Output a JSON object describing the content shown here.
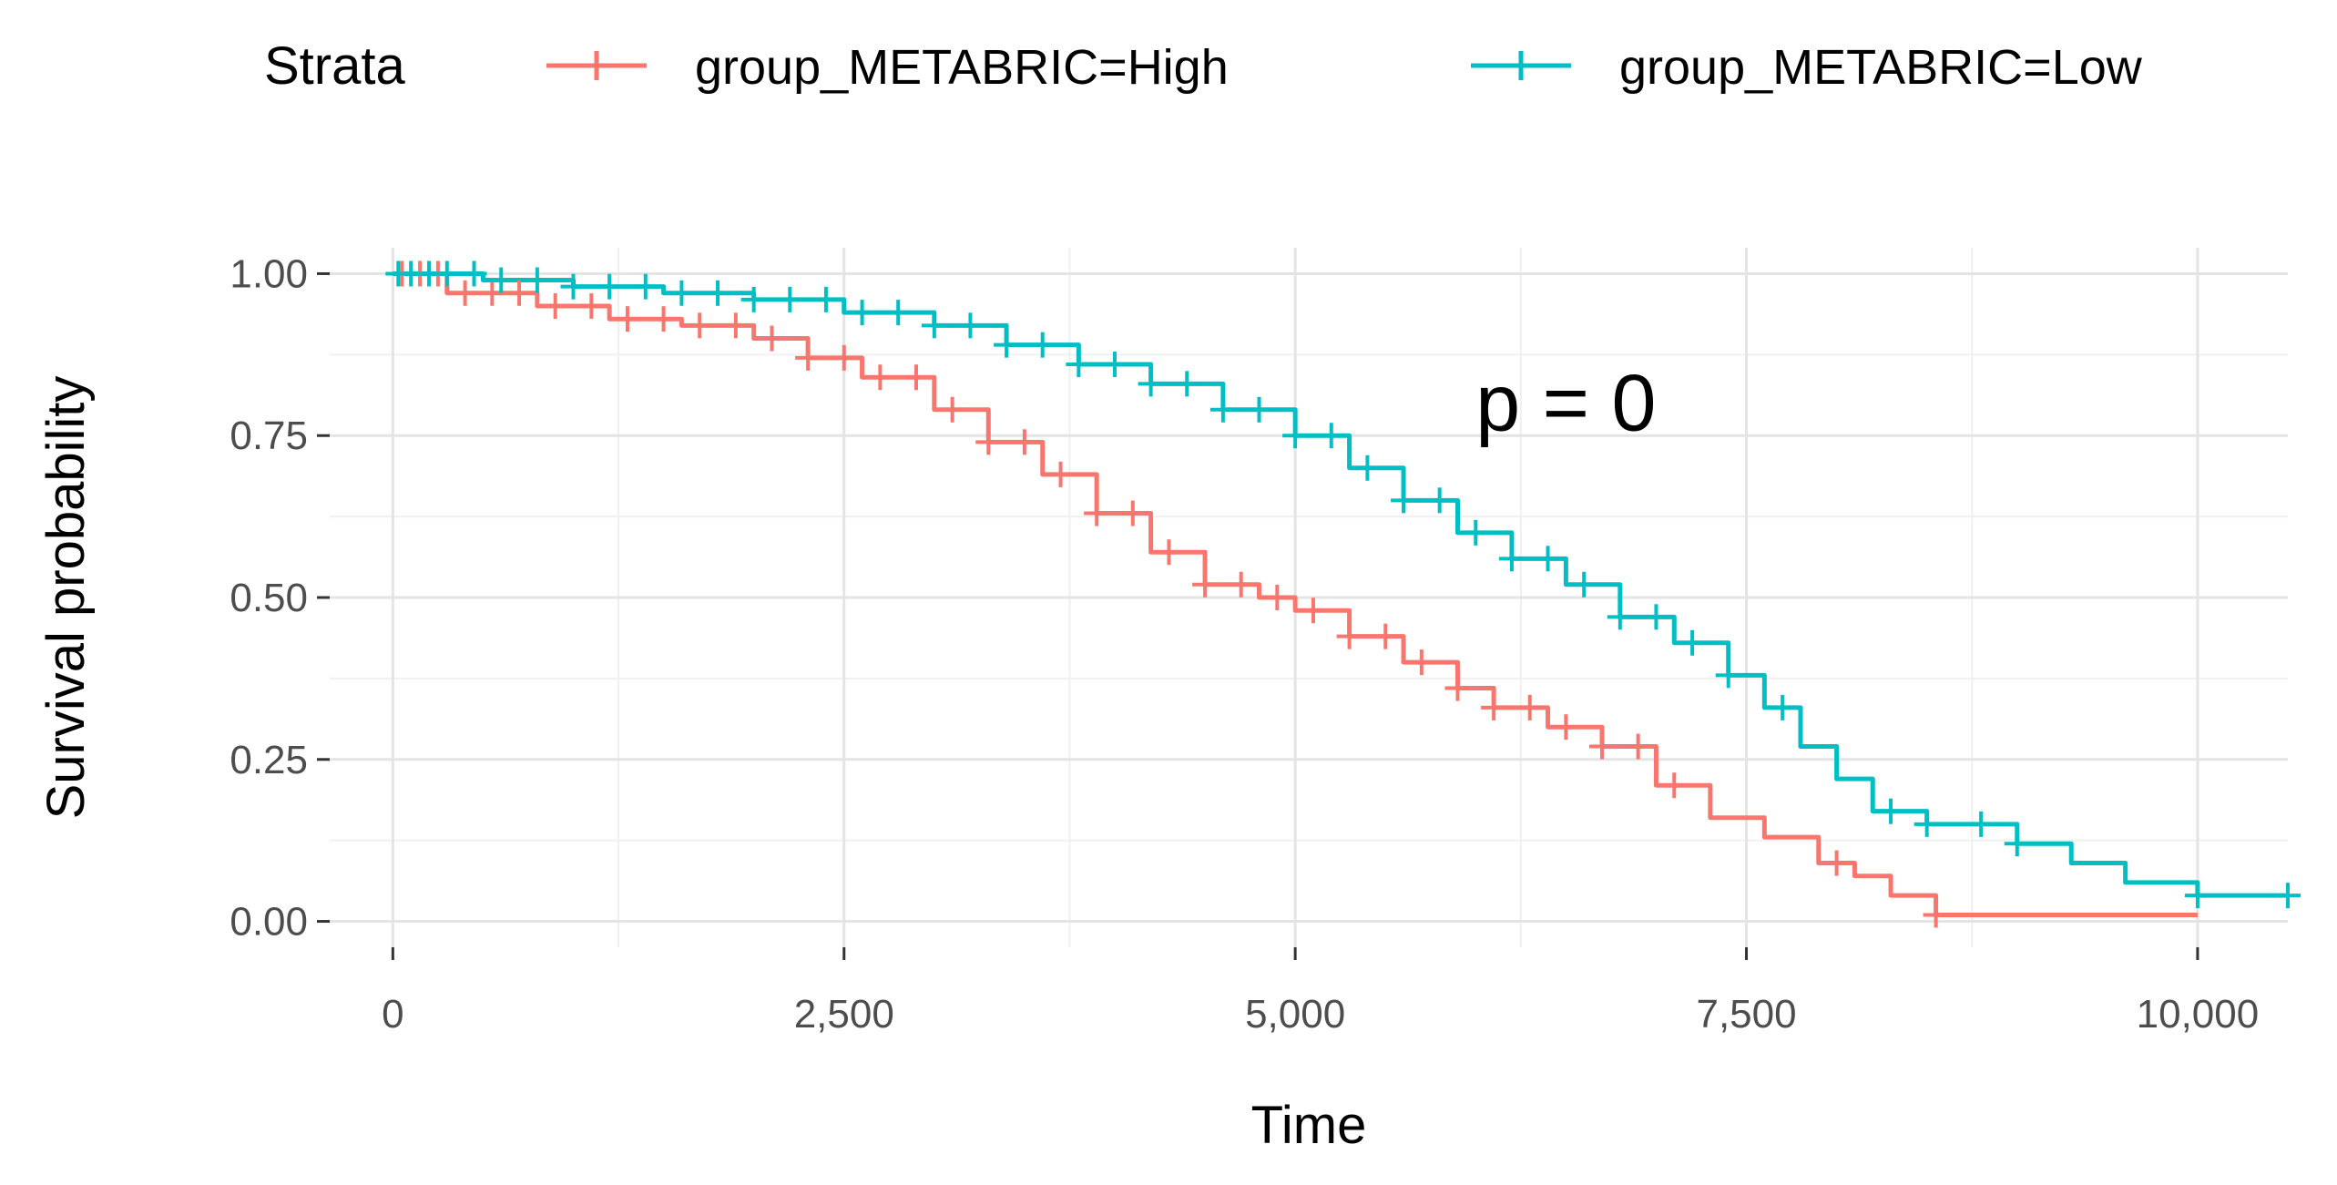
{
  "chart_data": {
    "type": "line",
    "title": "",
    "xlabel": "Time",
    "ylabel": "Survival probability",
    "xlim": [
      -350,
      10500
    ],
    "ylim": [
      -0.04,
      1.04
    ],
    "x_ticks": [
      0,
      2500,
      5000,
      7500,
      10000
    ],
    "x_tick_labels": [
      "0",
      "2,500",
      "5,000",
      "7,500",
      "10,000"
    ],
    "y_ticks": [
      0,
      0.25,
      0.5,
      0.75,
      1
    ],
    "y_tick_labels": [
      "0.00",
      "0.25",
      "0.50",
      "0.75",
      "1.00"
    ],
    "grid": true,
    "legend": {
      "title": "Strata",
      "position": "top",
      "entries": [
        "group_METABRIC=High",
        "group_METABRIC=Low"
      ]
    },
    "annotation": {
      "text": "p = 0",
      "x": 6500,
      "y": 0.8
    },
    "series": [
      {
        "name": "group_METABRIC=High",
        "color": "#F8766D",
        "x": [
          0,
          300,
          800,
          1200,
          1600,
          2000,
          2300,
          2600,
          3000,
          3300,
          3600,
          3900,
          4200,
          4500,
          4800,
          5000,
          5300,
          5600,
          5900,
          6100,
          6400,
          6700,
          7000,
          7300,
          7600,
          7900,
          8100,
          8300,
          8550,
          9000,
          10000
        ],
        "y": [
          1.0,
          0.97,
          0.95,
          0.93,
          0.92,
          0.9,
          0.87,
          0.84,
          0.79,
          0.74,
          0.69,
          0.63,
          0.57,
          0.52,
          0.5,
          0.48,
          0.44,
          0.4,
          0.36,
          0.33,
          0.3,
          0.27,
          0.21,
          0.16,
          0.13,
          0.09,
          0.07,
          0.04,
          0.01,
          0.01,
          0.01
        ],
        "censor_x": [
          50,
          150,
          250,
          400,
          550,
          700,
          900,
          1100,
          1300,
          1500,
          1700,
          1900,
          2100,
          2300,
          2500,
          2700,
          2900,
          3100,
          3300,
          3500,
          3700,
          3900,
          4100,
          4300,
          4500,
          4700,
          4900,
          5100,
          5300,
          5500,
          5700,
          5900,
          6100,
          6300,
          6500,
          6700,
          6900,
          7100,
          8000,
          8550
        ]
      },
      {
        "name": "group_METABRIC=Low",
        "color": "#00BFC4",
        "x": [
          0,
          500,
          1000,
          1500,
          2000,
          2500,
          3000,
          3400,
          3800,
          4200,
          4600,
          5000,
          5300,
          5600,
          5900,
          6200,
          6500,
          6800,
          7100,
          7400,
          7600,
          7800,
          8000,
          8200,
          8500,
          9000,
          9300,
          9600,
          10000,
          10500
        ],
        "y": [
          1.0,
          0.99,
          0.98,
          0.97,
          0.96,
          0.94,
          0.92,
          0.89,
          0.86,
          0.83,
          0.79,
          0.75,
          0.7,
          0.65,
          0.6,
          0.56,
          0.52,
          0.47,
          0.43,
          0.38,
          0.33,
          0.27,
          0.22,
          0.17,
          0.15,
          0.12,
          0.09,
          0.06,
          0.04,
          0.04
        ],
        "censor_x": [
          30,
          100,
          200,
          300,
          450,
          600,
          800,
          1000,
          1200,
          1400,
          1600,
          1800,
          2000,
          2200,
          2400,
          2600,
          2800,
          3000,
          3200,
          3400,
          3600,
          3800,
          4000,
          4200,
          4400,
          4600,
          4800,
          5000,
          5200,
          5400,
          5600,
          5800,
          6000,
          6200,
          6400,
          6600,
          6800,
          7000,
          7200,
          7400,
          7700,
          8300,
          8500,
          8800,
          9000,
          10000,
          10500
        ]
      }
    ]
  }
}
